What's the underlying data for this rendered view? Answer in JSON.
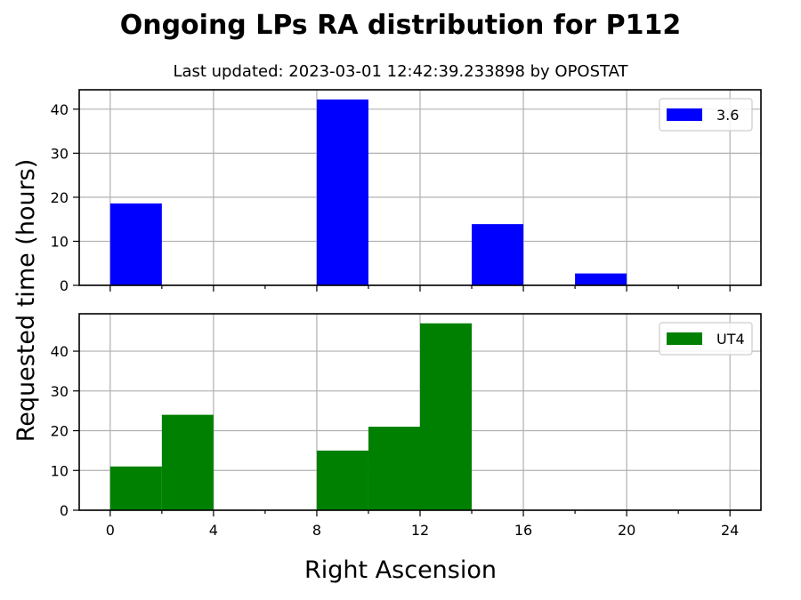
{
  "chart_data": {
    "title": "Ongoing LPs RA distribution for P112",
    "subtitle": "Last updated: 2023-03-01 12:42:39.233898 by OPOSTAT",
    "xlabel": "Right Ascension",
    "ylabel": "Requested time (hours)",
    "charts": [
      {
        "type": "bar",
        "series_name": "3.6",
        "color": "#0000ff",
        "legend": "top-right",
        "grid": true,
        "xlim": [
          -1.2,
          25.2
        ],
        "ylim": [
          0,
          44.4
        ],
        "xticks": [
          0,
          4,
          8,
          12,
          16,
          20,
          24
        ],
        "yticks": [
          0,
          10,
          20,
          30,
          40
        ],
        "bins": [
          {
            "start": 0,
            "end": 2,
            "value": 18.6
          },
          {
            "start": 8,
            "end": 10,
            "value": 42.2
          },
          {
            "start": 14,
            "end": 16,
            "value": 13.9
          },
          {
            "start": 18,
            "end": 20,
            "value": 2.7
          }
        ]
      },
      {
        "type": "bar",
        "series_name": "UT4",
        "color": "#008000",
        "legend": "top-right",
        "grid": true,
        "xlim": [
          -1.2,
          25.2
        ],
        "ylim": [
          0,
          49.4
        ],
        "xticks": [
          0,
          4,
          8,
          12,
          16,
          20,
          24
        ],
        "yticks": [
          0,
          10,
          20,
          30,
          40
        ],
        "bins": [
          {
            "start": 0,
            "end": 2,
            "value": 11.0
          },
          {
            "start": 2,
            "end": 4,
            "value": 24.0
          },
          {
            "start": 8,
            "end": 10,
            "value": 15.0
          },
          {
            "start": 10,
            "end": 12,
            "value": 21.0
          },
          {
            "start": 12,
            "end": 14,
            "value": 47.0
          }
        ]
      }
    ]
  }
}
